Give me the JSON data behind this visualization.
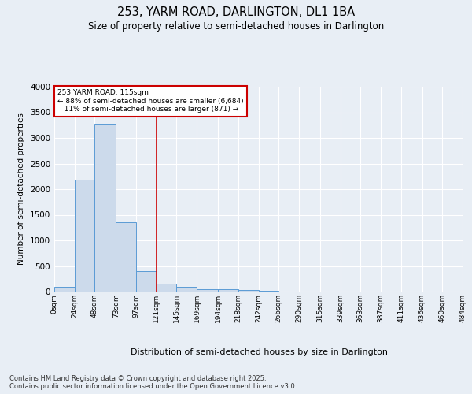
{
  "title": "253, YARM ROAD, DARLINGTON, DL1 1BA",
  "subtitle": "Size of property relative to semi-detached houses in Darlington",
  "xlabel": "Distribution of semi-detached houses by size in Darlington",
  "ylabel": "Number of semi-detached properties",
  "bar_values": [
    100,
    2180,
    3280,
    1350,
    400,
    155,
    90,
    50,
    45,
    35,
    20,
    0,
    0,
    0,
    0,
    0,
    0,
    0,
    0,
    0
  ],
  "bin_labels": [
    "0sqm",
    "24sqm",
    "48sqm",
    "73sqm",
    "97sqm",
    "121sqm",
    "145sqm",
    "169sqm",
    "194sqm",
    "218sqm",
    "242sqm",
    "266sqm",
    "290sqm",
    "315sqm",
    "339sqm",
    "363sqm",
    "387sqm",
    "411sqm",
    "436sqm",
    "460sqm",
    "484sqm"
  ],
  "bar_color": "#ccdaeb",
  "bar_edge_color": "#5b9bd5",
  "vline_x": 121,
  "vline_color": "#cc0000",
  "annotation_text": "253 YARM ROAD: 115sqm\n← 88% of semi-detached houses are smaller (6,684)\n   11% of semi-detached houses are larger (871) →",
  "annotation_box_color": "#cc0000",
  "ylim": [
    0,
    4000
  ],
  "yticks": [
    0,
    500,
    1000,
    1500,
    2000,
    2500,
    3000,
    3500,
    4000
  ],
  "footer_text": "Contains HM Land Registry data © Crown copyright and database right 2025.\nContains public sector information licensed under the Open Government Licence v3.0.",
  "bg_color": "#e8eef5",
  "plot_bg_color": "#e8eef5",
  "bin_starts": [
    0,
    24,
    48,
    73,
    97,
    121,
    145,
    169,
    194,
    218,
    242,
    266,
    290,
    315,
    339,
    363,
    387,
    411,
    436,
    460
  ]
}
